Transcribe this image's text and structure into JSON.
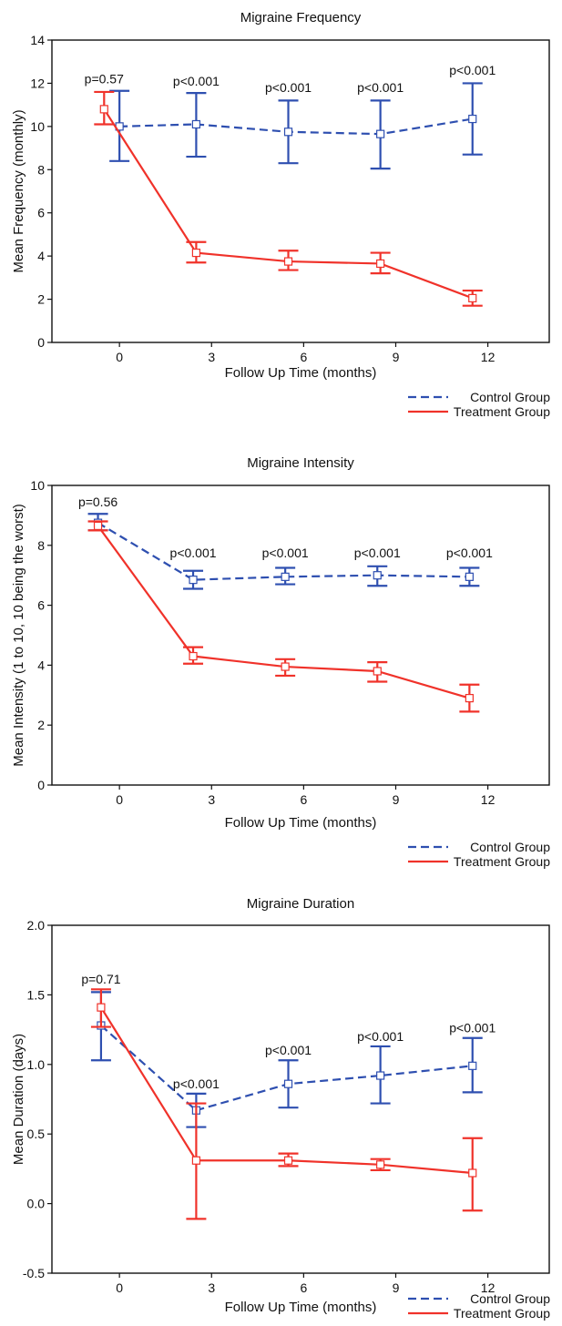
{
  "chart_data": [
    {
      "type": "line",
      "title": "Migraine Frequency",
      "xlabel": "Follow Up Time (months)",
      "ylabel": "Mean Frequency (monthly)",
      "xlim": [
        -2.2,
        14.0
      ],
      "ylim": [
        0,
        14
      ],
      "xticks": [
        0,
        3,
        6,
        9,
        12
      ],
      "yticks": [
        0,
        2,
        4,
        6,
        8,
        10,
        12,
        14
      ],
      "ytick_decimals": 0,
      "grid": false,
      "legend_position": "bottom-right",
      "colors": {
        "control": "#2e4fb0",
        "treatment": "#f0322a"
      },
      "series": [
        {
          "name": "Control Group",
          "line_style": "dashed",
          "x": [
            0,
            2.5,
            5.5,
            8.5,
            11.5
          ],
          "y": [
            10.0,
            10.1,
            9.75,
            9.65,
            10.35
          ],
          "err_low": [
            8.4,
            8.6,
            8.3,
            8.05,
            8.7
          ],
          "err_high": [
            11.65,
            11.55,
            11.2,
            11.2,
            12.0
          ]
        },
        {
          "name": "Treatment Group",
          "line_style": "solid",
          "x": [
            -0.5,
            2.5,
            5.5,
            8.5,
            11.5
          ],
          "y": [
            10.8,
            4.15,
            3.75,
            3.65,
            2.05
          ],
          "err_low": [
            10.1,
            3.7,
            3.35,
            3.2,
            1.7
          ],
          "err_high": [
            11.6,
            4.65,
            4.25,
            4.15,
            2.4
          ]
        }
      ],
      "annotations": [
        {
          "text": "p=0.57",
          "x": -0.5,
          "y": 12.0
        },
        {
          "text": "p<0.001",
          "x": 2.5,
          "y": 11.9
        },
        {
          "text": "p<0.001",
          "x": 5.5,
          "y": 11.6
        },
        {
          "text": "p<0.001",
          "x": 8.5,
          "y": 11.6
        },
        {
          "text": "p<0.001",
          "x": 11.5,
          "y": 12.4
        }
      ]
    },
    {
      "type": "line",
      "title": "Migraine Intensity",
      "xlabel": "Follow Up Time (months)",
      "ylabel": "Mean Intensity (1 to 10, 10 being the worst)",
      "xlim": [
        -2.2,
        14.0
      ],
      "ylim": [
        0,
        10
      ],
      "xticks": [
        0,
        3,
        6,
        9,
        12
      ],
      "yticks": [
        0,
        2,
        4,
        6,
        8,
        10
      ],
      "ytick_decimals": 0,
      "grid": false,
      "legend_position": "bottom-right",
      "colors": {
        "control": "#2e4fb0",
        "treatment": "#f0322a"
      },
      "series": [
        {
          "name": "Control Group",
          "line_style": "dashed",
          "x": [
            -0.7,
            2.4,
            5.4,
            8.4,
            11.4
          ],
          "y": [
            8.75,
            6.85,
            6.95,
            7.0,
            6.95
          ],
          "err_low": [
            8.5,
            6.55,
            6.7,
            6.65,
            6.65
          ],
          "err_high": [
            9.05,
            7.15,
            7.25,
            7.3,
            7.25
          ]
        },
        {
          "name": "Treatment Group",
          "line_style": "solid",
          "x": [
            -0.7,
            2.4,
            5.4,
            8.4,
            11.4
          ],
          "y": [
            8.65,
            4.3,
            3.95,
            3.8,
            2.9
          ],
          "err_low": [
            8.5,
            4.05,
            3.65,
            3.45,
            2.45
          ],
          "err_high": [
            8.8,
            4.6,
            4.2,
            4.1,
            3.35
          ]
        }
      ],
      "annotations": [
        {
          "text": "p=0.56",
          "x": -0.7,
          "y": 9.3
        },
        {
          "text": "p<0.001",
          "x": 2.4,
          "y": 7.6
        },
        {
          "text": "p<0.001",
          "x": 5.4,
          "y": 7.6
        },
        {
          "text": "p<0.001",
          "x": 8.4,
          "y": 7.6
        },
        {
          "text": "p<0.001",
          "x": 11.4,
          "y": 7.6
        }
      ]
    },
    {
      "type": "line",
      "title": "Migraine Duration",
      "xlabel": "Follow Up Time (months)",
      "ylabel": "Mean Duration (days)",
      "xlim": [
        -2.2,
        14.0
      ],
      "ylim": [
        -0.5,
        2.0
      ],
      "xticks": [
        0,
        3,
        6,
        9,
        12
      ],
      "yticks": [
        -0.5,
        0.0,
        0.5,
        1.0,
        1.5,
        2.0
      ],
      "ytick_decimals": 1,
      "grid": false,
      "legend_position": "bottom-right",
      "colors": {
        "control": "#2e4fb0",
        "treatment": "#f0322a"
      },
      "series": [
        {
          "name": "Control Group",
          "line_style": "dashed",
          "x": [
            -0.6,
            2.5,
            5.5,
            8.5,
            11.5
          ],
          "y": [
            1.28,
            0.67,
            0.86,
            0.92,
            0.99
          ],
          "err_low": [
            1.03,
            0.55,
            0.69,
            0.72,
            0.8
          ],
          "err_high": [
            1.52,
            0.79,
            1.03,
            1.13,
            1.19
          ]
        },
        {
          "name": "Treatment Group",
          "line_style": "solid",
          "x": [
            -0.6,
            2.5,
            5.5,
            8.5,
            11.5
          ],
          "y": [
            1.41,
            0.31,
            0.31,
            0.28,
            0.22
          ],
          "err_low": [
            1.27,
            -0.11,
            0.27,
            0.24,
            -0.05
          ],
          "err_high": [
            1.54,
            0.72,
            0.36,
            0.32,
            0.47
          ]
        }
      ],
      "annotations": [
        {
          "text": "p=0.71",
          "x": -0.6,
          "y": 1.58
        },
        {
          "text": "p<0.001",
          "x": 2.5,
          "y": 0.83
        },
        {
          "text": "p<0.001",
          "x": 5.5,
          "y": 1.07
        },
        {
          "text": "p<0.001",
          "x": 8.5,
          "y": 1.17
        },
        {
          "text": "p<0.001",
          "x": 11.5,
          "y": 1.23
        }
      ]
    }
  ]
}
